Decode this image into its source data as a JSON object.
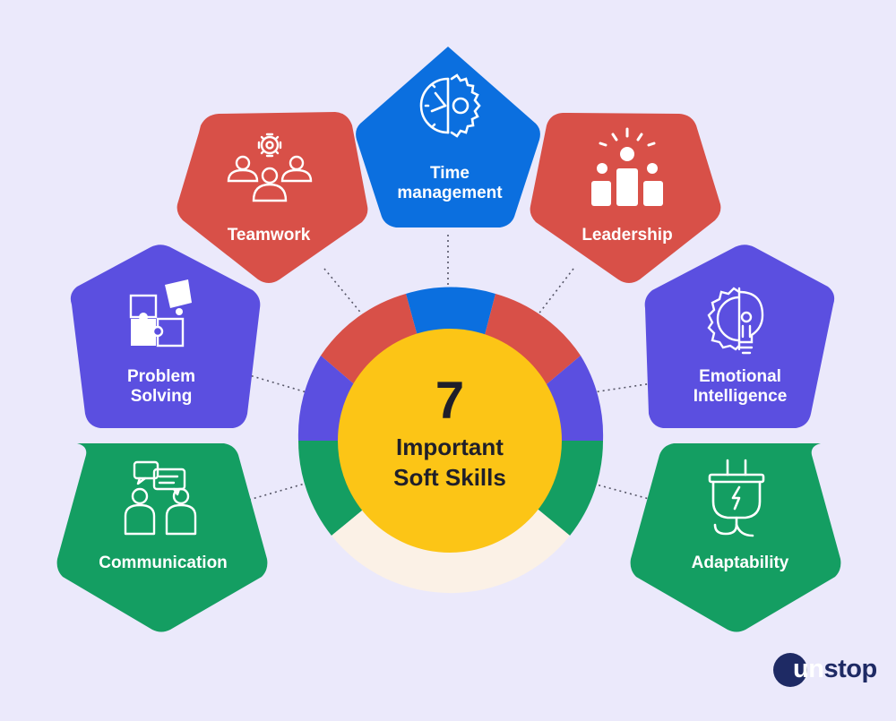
{
  "center": {
    "number": "7",
    "title": "Important\nSoft Skills"
  },
  "skills": [
    {
      "label": "Time\nmanagement",
      "color": "#0b6fdf",
      "icon": "clock-gear-icon"
    },
    {
      "label": "Teamwork",
      "color": "#d85048",
      "icon": "team-gear-icon"
    },
    {
      "label": "Leadership",
      "color": "#d85048",
      "icon": "podium-leader-icon"
    },
    {
      "label": "Problem\nSolving",
      "color": "#5b4fe0",
      "icon": "puzzle-icon"
    },
    {
      "label": "Emotional\nIntelligence",
      "color": "#5b4fe0",
      "icon": "gear-bulb-icon"
    },
    {
      "label": "Communication",
      "color": "#149e62",
      "icon": "chat-people-icon"
    },
    {
      "label": "Adaptability",
      "color": "#149e62",
      "icon": "plug-icon"
    }
  ],
  "colors": {
    "background": "#ebe9fb",
    "center_circle": "#fcc516",
    "ring_blank": "#fbf1e6"
  },
  "logo": {
    "text_un": "un",
    "text_stop": "stop"
  }
}
